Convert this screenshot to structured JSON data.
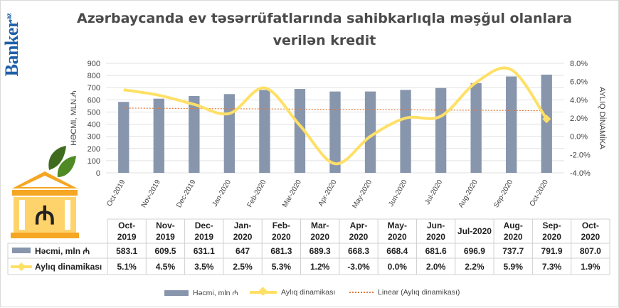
{
  "brand": {
    "name": "Banker",
    "suffix": "az",
    "logo_icon": "bank-building-manat-icon"
  },
  "title_lines": [
    "Azərbaycanda ev təsərrüfatlarında sahibkarlıqla məşğul olanlara",
    "verilən kredit"
  ],
  "colors": {
    "bars": "#8896ad",
    "line": "#ffe066",
    "trend": "#e07a3c",
    "grid": "#e2e2e2",
    "logo_roof": "#f5a623",
    "logo_leaf": "#3f6b1f"
  },
  "chart_data": {
    "type": "bar",
    "categories": [
      "Oct-2019",
      "Nov-2019",
      "Dec-2019",
      "Jan-2020",
      "Feb-2020",
      "Mar-2020",
      "Apr-2020",
      "May-2020",
      "Jun-2020",
      "Jul-2020",
      "Aug-2020",
      "Sep-2020",
      "Oct-2020"
    ],
    "table_headers": [
      "Oct-\n2019",
      "Nov-\n2019",
      "Dec-\n2019",
      "Jan-\n2020",
      "Feb-\n2020",
      "Mar-\n2020",
      "Apr-\n2020",
      "May-\n2020",
      "Jun-\n2020",
      "Jul-2020",
      "Aug-\n2020",
      "Sep-\n2020",
      "Oct-\n2020"
    ],
    "series": [
      {
        "name": "Həcmi, mln ₼",
        "type": "bar",
        "axis": "left",
        "values": [
          583.1,
          609.5,
          631.1,
          647,
          681.3,
          689.3,
          668.3,
          668.4,
          681.6,
          696.9,
          737.7,
          791.9,
          807.0
        ],
        "labels": [
          "583.1",
          "609.5",
          "631.1",
          "647",
          "681.3",
          "689.3",
          "668.3",
          "668.4",
          "681.6",
          "696.9",
          "737.7",
          "791.9",
          "807.0"
        ]
      },
      {
        "name": "Aylıq dinamikası",
        "type": "line",
        "axis": "right",
        "values": [
          5.1,
          4.5,
          3.5,
          2.5,
          5.3,
          1.2,
          -3.0,
          0.0,
          2.0,
          2.2,
          5.9,
          7.3,
          1.9
        ],
        "labels": [
          "5.1%",
          "4.5%",
          "3.5%",
          "2.5%",
          "5.3%",
          "1.2%",
          "-3.0%",
          "0.0%",
          "2.0%",
          "2.2%",
          "5.9%",
          "7.3%",
          "1.9%"
        ]
      },
      {
        "name": "Linear (Aylıq dinamikası)",
        "type": "trendline",
        "axis": "right"
      }
    ],
    "ylabel": "HƏCMI, MLN.₼",
    "y2label": "AYLIQ DİNAMİKA",
    "ylim": [
      0,
      900
    ],
    "yticks": [
      0,
      100,
      200,
      300,
      400,
      500,
      600,
      700,
      800,
      900
    ],
    "y2lim": [
      -4,
      8
    ],
    "y2ticks": [
      "-4.0%",
      "-2.0%",
      "0.0%",
      "2.0%",
      "4.0%",
      "6.0%",
      "8.0%"
    ],
    "legend_labels": [
      "Həcmi, mln ₼",
      "Aylıq dinamikası",
      "Linear (Aylıq dinamikası)"
    ],
    "table_row_labels": [
      "Həcmi, mln ₼",
      "Aylıq dinamikası"
    ],
    "grid": true,
    "legend_position": "bottom"
  }
}
